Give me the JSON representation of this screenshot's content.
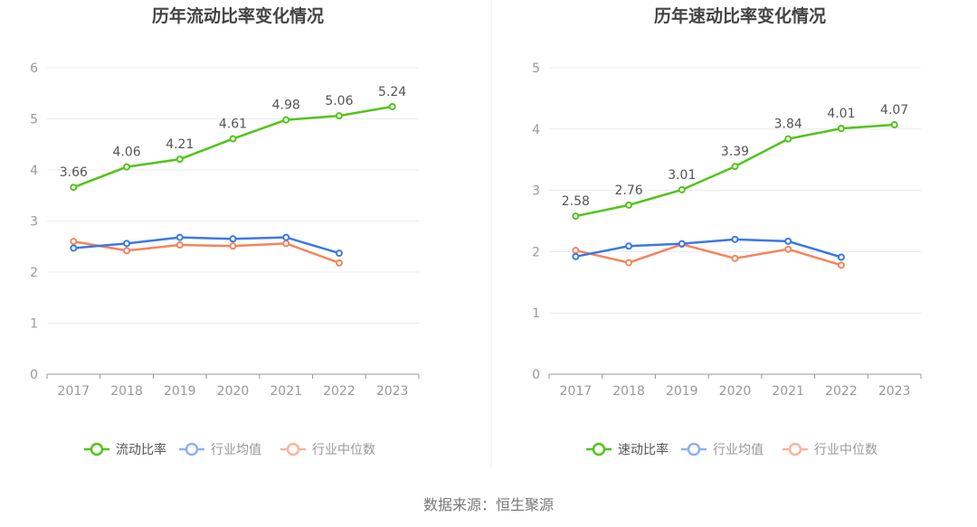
{
  "colors": {
    "main": "#52c41a",
    "avg": "#3b78e7",
    "median": "#f5845a",
    "grid": "#e8eaf3",
    "axis": "#999999"
  },
  "source": "数据来源：恒生聚源",
  "chart_data": [
    {
      "type": "line",
      "title": "历年流动比率变化情况",
      "categories": [
        "2017",
        "2018",
        "2019",
        "2020",
        "2021",
        "2022",
        "2023"
      ],
      "ylim": [
        0,
        6
      ],
      "yticks": [
        "0",
        "1",
        "2",
        "3",
        "4",
        "5",
        "6"
      ],
      "grid": true,
      "legend_placement": "bottom",
      "series": [
        {
          "name": "流动比率",
          "color": "#52c41a",
          "values": [
            3.66,
            4.06,
            4.21,
            4.61,
            4.98,
            5.06,
            5.24
          ],
          "labels": [
            "3.66",
            "4.06",
            "4.21",
            "4.61",
            "4.98",
            "5.06",
            "5.24"
          ]
        },
        {
          "name": "行业均值",
          "color": "#3b78e7",
          "values": [
            2.47,
            2.56,
            2.68,
            2.65,
            2.68,
            2.37,
            null
          ]
        },
        {
          "name": "行业中位数",
          "color": "#f5845a",
          "values": [
            2.6,
            2.42,
            2.53,
            2.51,
            2.56,
            2.18,
            null
          ]
        }
      ]
    },
    {
      "type": "line",
      "title": "历年速动比率变化情况",
      "categories": [
        "2017",
        "2018",
        "2019",
        "2020",
        "2021",
        "2022",
        "2023"
      ],
      "ylim": [
        0,
        5
      ],
      "yticks": [
        "0",
        "1",
        "2",
        "3",
        "4",
        "5"
      ],
      "grid": true,
      "legend_placement": "bottom",
      "series": [
        {
          "name": "速动比率",
          "color": "#52c41a",
          "values": [
            2.58,
            2.76,
            3.01,
            3.39,
            3.84,
            4.01,
            4.07
          ],
          "labels": [
            "2.58",
            "2.76",
            "3.01",
            "3.39",
            "3.84",
            "4.01",
            "4.07"
          ]
        },
        {
          "name": "行业均值",
          "color": "#3b78e7",
          "values": [
            1.92,
            2.09,
            2.13,
            2.2,
            2.17,
            1.91,
            null
          ]
        },
        {
          "name": "行业中位数",
          "color": "#f5845a",
          "values": [
            2.02,
            1.82,
            2.12,
            1.89,
            2.04,
            1.78,
            null
          ]
        }
      ]
    }
  ]
}
